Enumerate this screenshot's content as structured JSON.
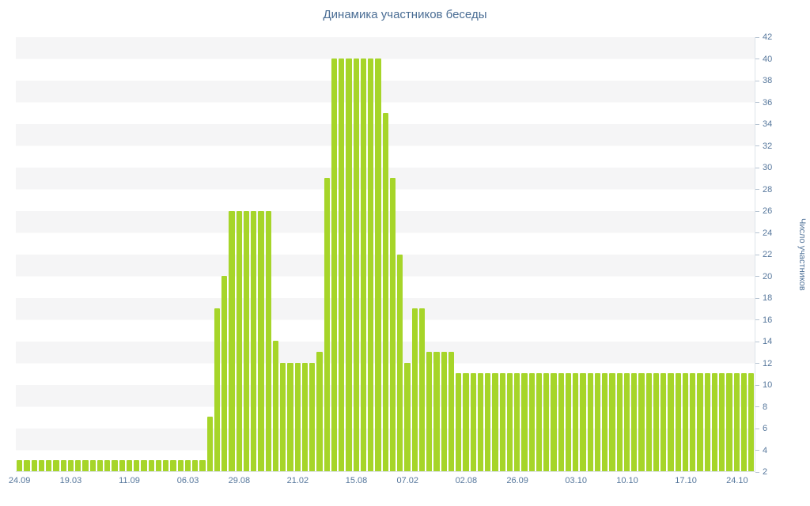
{
  "title": "Динамика участников беседы",
  "colors": {
    "bar": "#a6d529",
    "axis_text": "#56779c",
    "title_text": "#4a6d94",
    "stripe": "#f5f5f6",
    "axis_line": "#dde3e9"
  },
  "chart_data": {
    "type": "bar",
    "title": "Динамика участников беседы",
    "xlabel": "",
    "ylabel": "Число участников",
    "ylim": [
      2,
      42
    ],
    "y_tick_step": 2,
    "grid": "horizontal-stripes",
    "legend": "none",
    "x_tick_labels": [
      {
        "label": "24.09",
        "index": 0
      },
      {
        "label": "19.03",
        "index": 7
      },
      {
        "label": "11.09",
        "index": 15
      },
      {
        "label": "06.03",
        "index": 23
      },
      {
        "label": "29.08",
        "index": 30
      },
      {
        "label": "21.02",
        "index": 38
      },
      {
        "label": "15.08",
        "index": 46
      },
      {
        "label": "07.02",
        "index": 53
      },
      {
        "label": "02.08",
        "index": 61
      },
      {
        "label": "26.09",
        "index": 68
      },
      {
        "label": "03.10",
        "index": 76
      },
      {
        "label": "10.10",
        "index": 83
      },
      {
        "label": "17.10",
        "index": 91
      },
      {
        "label": "24.10",
        "index": 98
      }
    ],
    "values": [
      3,
      3,
      3,
      3,
      3,
      3,
      3,
      3,
      3,
      3,
      3,
      3,
      3,
      3,
      3,
      3,
      3,
      3,
      3,
      3,
      3,
      3,
      3,
      3,
      3,
      3,
      7,
      17,
      20,
      26,
      26,
      26,
      26,
      26,
      26,
      14,
      12,
      12,
      12,
      12,
      12,
      13,
      29,
      40,
      40,
      40,
      40,
      40,
      40,
      40,
      35,
      29,
      22,
      12,
      17,
      17,
      13,
      13,
      13,
      13,
      11,
      11,
      11,
      11,
      11,
      11,
      11,
      11,
      11,
      11,
      11,
      11,
      11,
      11,
      11,
      11,
      11,
      11,
      11,
      11,
      11,
      11,
      11,
      11,
      11,
      11,
      11,
      11,
      11,
      11,
      11,
      11,
      11,
      11,
      11,
      11,
      11,
      11,
      11,
      11,
      11
    ]
  }
}
